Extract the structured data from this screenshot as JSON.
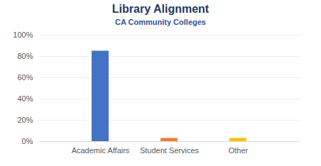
{
  "chart_data": {
    "type": "bar",
    "title": "Library Alignment",
    "subtitle": "CA Community Colleges",
    "categories": [
      "Academic Affairs",
      "Student Services",
      "Other"
    ],
    "values": [
      85,
      3,
      3
    ],
    "colors": [
      "#4472c4",
      "#ed7d31",
      "#ffc000"
    ],
    "ylim": [
      0,
      100
    ],
    "yticks": [
      {
        "value": 0,
        "label": "0%"
      },
      {
        "value": 20,
        "label": "20%"
      },
      {
        "value": 40,
        "label": "40%"
      },
      {
        "value": 60,
        "label": "60%"
      },
      {
        "value": 80,
        "label": "80%"
      },
      {
        "value": 100,
        "label": "100%"
      }
    ],
    "grid": true
  }
}
